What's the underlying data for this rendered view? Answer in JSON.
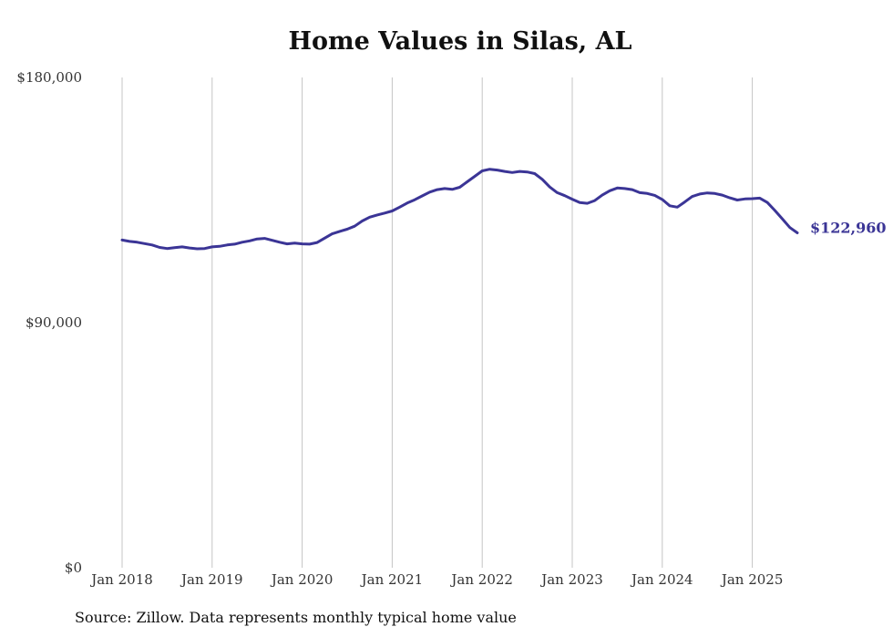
{
  "chart_data": {
    "type": "line",
    "title": "Home Values in Silas, AL",
    "xlabel": "",
    "ylabel": "",
    "ylim": [
      0,
      180000
    ],
    "y_ticks": [
      "$0",
      "$90,000",
      "$180,000"
    ],
    "y_tick_values": [
      0,
      90000,
      180000
    ],
    "x_ticks": [
      "Jan 2018",
      "Jan 2019",
      "Jan 2020",
      "Jan 2021",
      "Jan 2022",
      "Jan 2023",
      "Jan 2024",
      "Jan 2025"
    ],
    "x_tick_values": [
      2018,
      2019,
      2020,
      2021,
      2022,
      2023,
      2024,
      2025
    ],
    "grid": "vertical",
    "line_color": "#3b3596",
    "end_label": "$122,960",
    "series": [
      {
        "x": [
          2018.0,
          2018.083,
          2018.167,
          2018.25,
          2018.333,
          2018.417,
          2018.5,
          2018.583,
          2018.667,
          2018.75,
          2018.833,
          2018.917,
          2019.0,
          2019.083,
          2019.167,
          2019.25,
          2019.333,
          2019.417,
          2019.5,
          2019.583,
          2019.667,
          2019.75,
          2019.833,
          2019.917,
          2020.0,
          2020.083,
          2020.167,
          2020.25,
          2020.333,
          2020.417,
          2020.5,
          2020.583,
          2020.667,
          2020.75,
          2020.833,
          2020.917,
          2021.0,
          2021.083,
          2021.167,
          2021.25,
          2021.333,
          2021.417,
          2021.5,
          2021.583,
          2021.667,
          2021.75,
          2021.833,
          2021.917,
          2022.0,
          2022.083,
          2022.167,
          2022.25,
          2022.333,
          2022.417,
          2022.5,
          2022.583,
          2022.667,
          2022.75,
          2022.833,
          2022.917,
          2023.0,
          2023.083,
          2023.167,
          2023.25,
          2023.333,
          2023.417,
          2023.5,
          2023.583,
          2023.667,
          2023.75,
          2023.833,
          2023.917,
          2024.0,
          2024.083,
          2024.167,
          2024.25,
          2024.333,
          2024.417,
          2024.5,
          2024.583,
          2024.667,
          2024.75,
          2024.833,
          2024.917,
          2025.0,
          2025.083,
          2025.167,
          2025.25,
          2025.333,
          2025.417,
          2025.5
        ],
        "values": [
          120300,
          119800,
          119500,
          119000,
          118500,
          117600,
          117200,
          117500,
          117800,
          117400,
          117100,
          117200,
          117800,
          118000,
          118500,
          118800,
          119500,
          120000,
          120700,
          120900,
          120200,
          119500,
          118900,
          119200,
          118900,
          118800,
          119400,
          121000,
          122600,
          123500,
          124300,
          125400,
          127300,
          128700,
          129500,
          130200,
          131000,
          132400,
          133900,
          135100,
          136500,
          137900,
          138800,
          139200,
          138900,
          139700,
          141700,
          143700,
          145700,
          146300,
          146000,
          145500,
          145100,
          145500,
          145300,
          144700,
          142600,
          139800,
          137700,
          136600,
          135300,
          134100,
          133800,
          134800,
          136800,
          138400,
          139400,
          139200,
          138800,
          137700,
          137400,
          136700,
          135200,
          132900,
          132400,
          134300,
          136300,
          137200,
          137600,
          137400,
          136800,
          135800,
          135000,
          135400,
          135500,
          135700,
          134100,
          131200,
          128100,
          124900,
          122960
        ]
      }
    ]
  },
  "source_note": "Source: Zillow. Data represents monthly typical home value"
}
